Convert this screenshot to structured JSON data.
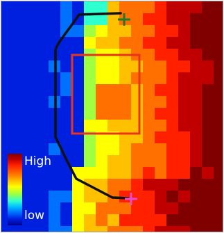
{
  "image": {
    "description_free": true,
    "colormap": [
      "#000090",
      "#0020e0",
      "#0070ff",
      "#00c0ff",
      "#30ffd0",
      "#a0ff40",
      "#ffff00",
      "#ffc000",
      "#ff7000",
      "#ff2000",
      "#c00000",
      "#800000"
    ],
    "colorbar": {
      "high_label": "High",
      "low_label": "low"
    },
    "outline_color": "#111111",
    "roi_box_color": "#e8341c",
    "start_marker_color": "#1f7a2e",
    "end_marker_color": "#e84ad8"
  }
}
